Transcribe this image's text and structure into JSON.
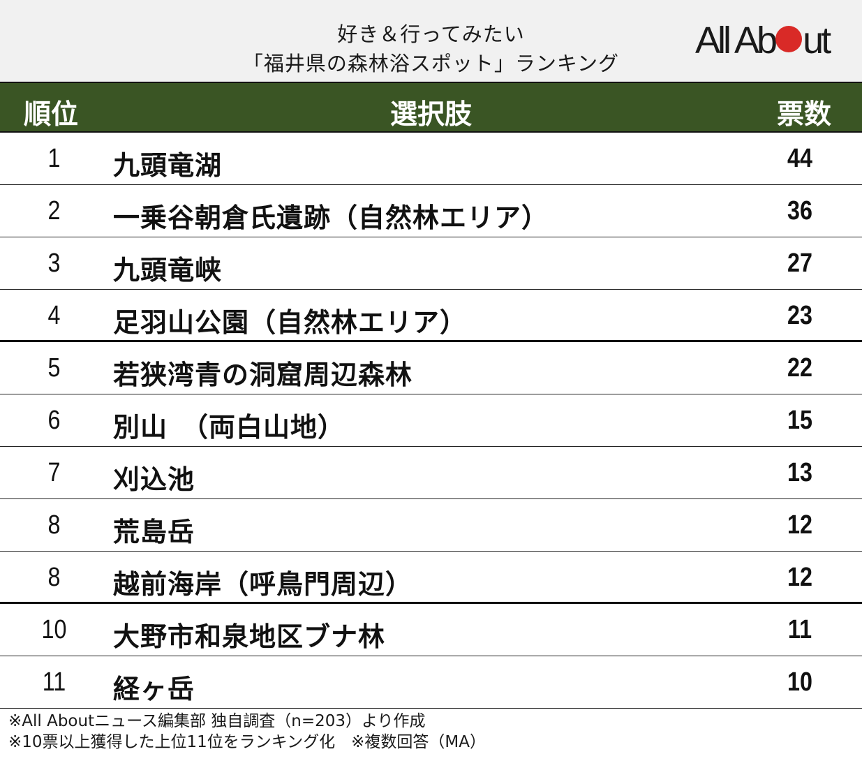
{
  "title": {
    "line1": "好き＆行ってみたい",
    "line2": "「福井県の森林浴スポット」ランキング"
  },
  "logo": {
    "text_before": "All Ab",
    "text_after": "ut",
    "dot_color": "#d92a27"
  },
  "colors": {
    "header_bg": "#3a5524",
    "title_bg": "#f1f1f1"
  },
  "table": {
    "headers": {
      "rank": "順位",
      "choice": "選択肢",
      "votes": "票数"
    },
    "rows": [
      {
        "rank": "1",
        "name": "九頭竜湖",
        "votes": "44"
      },
      {
        "rank": "2",
        "name": "一乗谷朝倉氏遺跡（自然林エリア）",
        "votes": "36"
      },
      {
        "rank": "3",
        "name": "九頭竜峡",
        "votes": "27"
      },
      {
        "rank": "4",
        "name": "足羽山公園（自然林エリア）",
        "votes": "23"
      },
      {
        "rank": "5",
        "name": "若狭湾青の洞窟周辺森林",
        "votes": "22"
      },
      {
        "rank": "6",
        "name": "別山　（両白山地）",
        "votes": "15"
      },
      {
        "rank": "7",
        "name": "刈込池",
        "votes": "13"
      },
      {
        "rank": "8",
        "name": "荒島岳",
        "votes": "12"
      },
      {
        "rank": "8",
        "name": "越前海岸（呼鳥門周辺）",
        "votes": "12"
      },
      {
        "rank": "10",
        "name": "大野市和泉地区ブナ林",
        "votes": "11"
      },
      {
        "rank": "11",
        "name": "経ヶ岳",
        "votes": "10"
      }
    ]
  },
  "notes": {
    "line1": "※All Aboutニュース編集部 独自調査（n=203）より作成",
    "line2": "※10票以上獲得した上位11位をランキング化　※複数回答（MA）"
  }
}
